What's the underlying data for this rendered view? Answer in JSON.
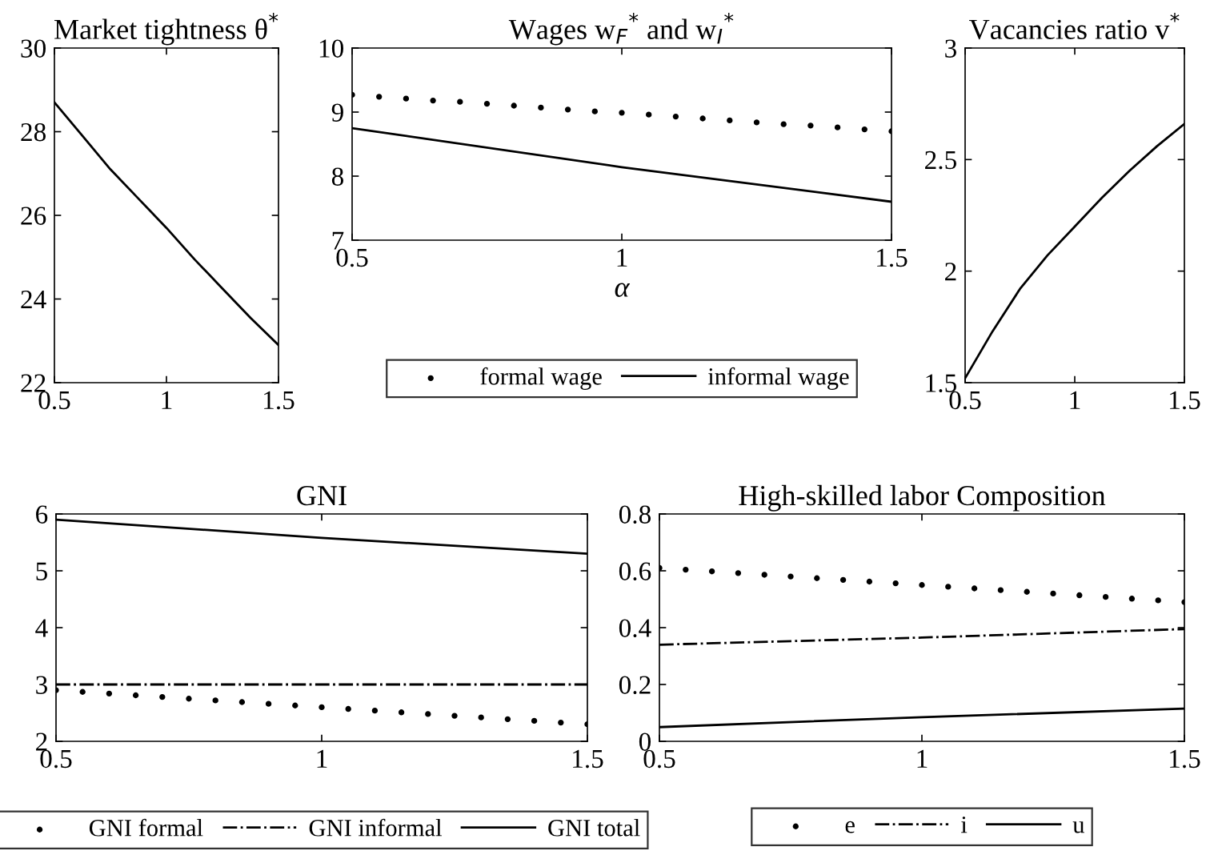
{
  "chart_data": [
    {
      "type": "line",
      "title": "Market tightness θ$^{*}$",
      "xlim": [
        0.5,
        1.5
      ],
      "xticks": [
        0.5,
        1,
        1.5
      ],
      "ylim": [
        22,
        30
      ],
      "yticks": [
        22,
        24,
        26,
        28,
        30
      ],
      "grid": false,
      "legend": false,
      "series": [
        {
          "color": "#000000",
          "x": [
            0.5,
            0.625,
            0.75,
            0.875,
            1,
            1.125,
            1.25,
            1.375,
            1.5
          ],
          "values": [
            28.7,
            27.9,
            27.1,
            26.4,
            25.7,
            24.95,
            24.25,
            23.55,
            22.9
          ]
        }
      ]
    },
    {
      "type": "line",
      "title": "Wages w$_{F}$$^{*}$ and w$_{I}$$^{*}$",
      "xlabel": "α",
      "xlim": [
        0.5,
        1.5
      ],
      "xticks": [
        0.5,
        1,
        1.5
      ],
      "ylim": [
        7,
        10
      ],
      "yticks": [
        7,
        8,
        9,
        10
      ],
      "grid": false,
      "legend": "bottom",
      "series": [
        {
          "name": "formal wage",
          "type": "scatter",
          "color": "#000000",
          "marker": "circle",
          "x": [
            0.5,
            0.55,
            0.6,
            0.65,
            0.7,
            0.75,
            0.8,
            0.85,
            0.9,
            0.95,
            1.0,
            1.05,
            1.1,
            1.15,
            1.2,
            1.25,
            1.3,
            1.35,
            1.4,
            1.45,
            1.5
          ],
          "values": [
            9.27,
            9.24,
            9.21,
            9.18,
            9.16,
            9.13,
            9.1,
            9.07,
            9.04,
            9.01,
            8.99,
            8.96,
            8.93,
            8.9,
            8.87,
            8.84,
            8.81,
            8.79,
            8.76,
            8.73,
            8.7
          ]
        },
        {
          "name": "informal wage",
          "color": "#000000",
          "line_style": "solid",
          "x": [
            0.5,
            1,
            1.5
          ],
          "values": [
            8.75,
            8.14,
            7.6
          ]
        }
      ]
    },
    {
      "type": "line",
      "title": "Vacancies ratio v$^{*}$",
      "xlim": [
        0.5,
        1.5
      ],
      "xticks": [
        0.5,
        1,
        1.5
      ],
      "ylim": [
        1.5,
        3
      ],
      "yticks": [
        1.5,
        2,
        2.5,
        3
      ],
      "grid": false,
      "legend": false,
      "series": [
        {
          "color": "#000000",
          "x": [
            0.5,
            0.625,
            0.75,
            0.875,
            1,
            1.125,
            1.25,
            1.375,
            1.5
          ],
          "values": [
            1.52,
            1.73,
            1.92,
            2.07,
            2.2,
            2.33,
            2.45,
            2.56,
            2.66
          ]
        }
      ]
    },
    {
      "type": "line",
      "title": "GNI",
      "xlim": [
        0.5,
        1.5
      ],
      "xticks": [
        0.5,
        1,
        1.5
      ],
      "ylim": [
        2,
        6
      ],
      "yticks": [
        2,
        3,
        4,
        5,
        6
      ],
      "grid": false,
      "legend": "bottom",
      "series": [
        {
          "name": "GNI formal",
          "type": "scatter",
          "color": "#000000",
          "marker": "circle",
          "x": [
            0.5,
            0.55,
            0.6,
            0.65,
            0.7,
            0.75,
            0.8,
            0.85,
            0.9,
            0.95,
            1.0,
            1.05,
            1.1,
            1.15,
            1.2,
            1.25,
            1.3,
            1.35,
            1.4,
            1.45,
            1.5
          ],
          "values": [
            2.9,
            2.87,
            2.84,
            2.81,
            2.78,
            2.75,
            2.72,
            2.69,
            2.66,
            2.63,
            2.6,
            2.57,
            2.54,
            2.51,
            2.48,
            2.45,
            2.42,
            2.39,
            2.36,
            2.33,
            2.3
          ]
        },
        {
          "name": "GNI informal",
          "color": "#000000",
          "line_style": "dashdot",
          "x": [
            0.5,
            1,
            1.5
          ],
          "values": [
            3.0,
            3.0,
            3.0
          ]
        },
        {
          "name": "GNI total",
          "color": "#000000",
          "line_style": "solid",
          "x": [
            0.5,
            1,
            1.5
          ],
          "values": [
            5.9,
            5.58,
            5.3
          ]
        }
      ]
    },
    {
      "type": "line",
      "title": "High-skilled labor Composition",
      "xlim": [
        0.5,
        1.5
      ],
      "xticks": [
        0.5,
        1,
        1.5
      ],
      "ylim": [
        0,
        0.8
      ],
      "yticks": [
        0,
        0.2,
        0.4,
        0.6,
        0.8
      ],
      "grid": false,
      "legend": "bottom",
      "series": [
        {
          "name": "e",
          "type": "scatter",
          "color": "#000000",
          "marker": "circle",
          "x": [
            0.5,
            0.55,
            0.6,
            0.65,
            0.7,
            0.75,
            0.8,
            0.85,
            0.9,
            0.95,
            1.0,
            1.05,
            1.1,
            1.15,
            1.2,
            1.25,
            1.3,
            1.35,
            1.4,
            1.45,
            1.5
          ],
          "values": [
            0.61,
            0.604,
            0.598,
            0.592,
            0.586,
            0.58,
            0.574,
            0.568,
            0.562,
            0.556,
            0.55,
            0.544,
            0.538,
            0.532,
            0.526,
            0.52,
            0.514,
            0.508,
            0.502,
            0.496,
            0.49
          ]
        },
        {
          "name": "i",
          "color": "#000000",
          "line_style": "dashdot",
          "x": [
            0.5,
            1,
            1.5
          ],
          "values": [
            0.34,
            0.365,
            0.395
          ]
        },
        {
          "name": "u",
          "color": "#000000",
          "line_style": "solid",
          "x": [
            0.5,
            1,
            1.5
          ],
          "values": [
            0.05,
            0.085,
            0.115
          ]
        }
      ]
    }
  ]
}
